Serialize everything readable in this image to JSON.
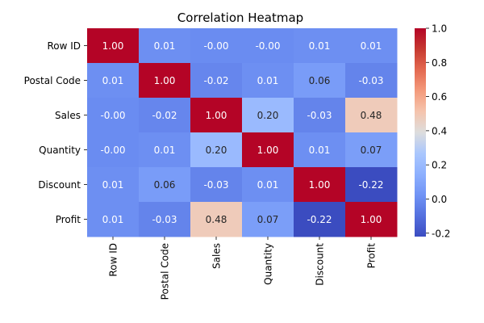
{
  "chart_data": {
    "type": "heatmap",
    "title": "Correlation Heatmap",
    "xlabel": "",
    "ylabel": "",
    "categories": [
      "Row ID",
      "Postal Code",
      "Sales",
      "Quantity",
      "Discount",
      "Profit"
    ],
    "row_labels": [
      "Row ID",
      "Postal Code",
      "Sales",
      "Quantity",
      "Discount",
      "Profit"
    ],
    "values": [
      [
        1.0,
        0.01,
        -0.0,
        -0.0,
        0.01,
        0.01
      ],
      [
        0.01,
        1.0,
        -0.02,
        0.01,
        0.06,
        -0.03
      ],
      [
        -0.0,
        -0.02,
        1.0,
        0.2,
        -0.03,
        0.48
      ],
      [
        -0.0,
        0.01,
        0.2,
        1.0,
        0.01,
        0.07
      ],
      [
        0.01,
        0.06,
        -0.03,
        0.01,
        1.0,
        -0.22
      ],
      [
        0.01,
        -0.03,
        0.48,
        0.07,
        -0.22,
        1.0
      ]
    ],
    "cell_labels": [
      [
        "1.00",
        "0.01",
        "-0.00",
        "-0.00",
        "0.01",
        "0.01"
      ],
      [
        "0.01",
        "1.00",
        "-0.02",
        "0.01",
        "0.06",
        "-0.03"
      ],
      [
        "-0.00",
        "-0.02",
        "1.00",
        "0.20",
        "-0.03",
        "0.48"
      ],
      [
        "-0.00",
        "0.01",
        "0.20",
        "1.00",
        "0.01",
        "0.07"
      ],
      [
        "0.01",
        "0.06",
        "-0.03",
        "0.01",
        "1.00",
        "-0.22"
      ],
      [
        "0.01",
        "-0.03",
        "0.48",
        "0.07",
        "-0.22",
        "1.00"
      ]
    ],
    "colormap": "coolwarm",
    "colorbar": {
      "range": [
        -0.22,
        1.0
      ],
      "ticks": [
        "-0.2",
        "0.0",
        "0.2",
        "0.4",
        "0.6",
        "0.8",
        "1.0"
      ],
      "tick_values": [
        -0.2,
        0.0,
        0.2,
        0.4,
        0.6,
        0.8,
        1.0
      ]
    },
    "legend": "colorbar-right",
    "grid": false
  }
}
